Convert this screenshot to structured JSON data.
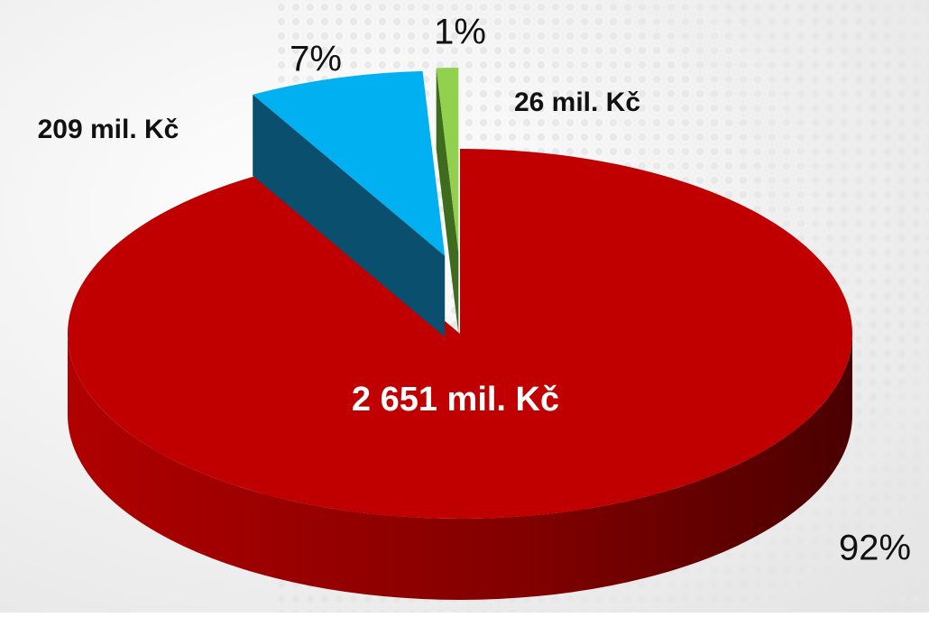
{
  "chart_data": {
    "type": "pie3d",
    "values": [
      92,
      7,
      1
    ],
    "value_labels": [
      "92%",
      "7%",
      "1%"
    ],
    "amounts": [
      2651,
      209,
      26
    ],
    "amount_labels": [
      "2 651 mil. Kč",
      "209 mil. Kč",
      "26 mil. Kč"
    ],
    "colors": [
      "#c00000",
      "#00b0f0",
      "#92d050"
    ],
    "side_colors": [
      "#7a0000",
      "#0a4f6e",
      "#3f6b1f"
    ]
  }
}
